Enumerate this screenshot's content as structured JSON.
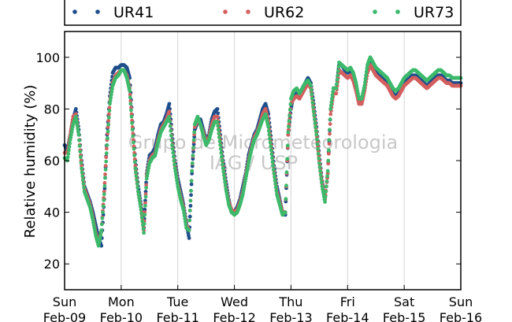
{
  "chart_data": {
    "type": "scatter",
    "ylabel": "Relative humidity (%)",
    "xlabel": "",
    "ylim": [
      10,
      110
    ],
    "xlim": [
      0,
      7
    ],
    "yticks": [
      20,
      40,
      60,
      80,
      100
    ],
    "xticks": [
      {
        "x": 0,
        "day": "Sun",
        "date": "Feb-09"
      },
      {
        "x": 1,
        "day": "Mon",
        "date": "Feb-10"
      },
      {
        "x": 2,
        "day": "Tue",
        "date": "Feb-11"
      },
      {
        "x": 3,
        "day": "Wed",
        "date": "Feb-12"
      },
      {
        "x": 4,
        "day": "Thu",
        "date": "Feb-13"
      },
      {
        "x": 5,
        "day": "Fri",
        "date": "Feb-14"
      },
      {
        "x": 6,
        "day": "Sat",
        "date": "Feb-15"
      },
      {
        "x": 7,
        "day": "Sun",
        "date": "Feb-16"
      }
    ],
    "grid": "vertical",
    "legend_position": "top",
    "watermark_line1": "Grupo de Micrometeorologia",
    "watermark_line2": "IAG / USP",
    "series": [
      {
        "name": "UR41",
        "color": "#1f4e8c"
      },
      {
        "name": "UR62",
        "color": "#d45f5f"
      },
      {
        "name": "UR73",
        "color": "#3cb96a"
      }
    ],
    "x": [
      0.0,
      0.05,
      0.1,
      0.15,
      0.2,
      0.25,
      0.3,
      0.35,
      0.4,
      0.45,
      0.5,
      0.55,
      0.6,
      0.65,
      0.7,
      0.75,
      0.8,
      0.85,
      0.9,
      0.95,
      1.0,
      1.05,
      1.1,
      1.15,
      1.2,
      1.25,
      1.3,
      1.35,
      1.4,
      1.45,
      1.5,
      1.55,
      1.6,
      1.65,
      1.7,
      1.75,
      1.8,
      1.85,
      1.9,
      1.95,
      2.0,
      2.05,
      2.1,
      2.15,
      2.2,
      2.25,
      2.3,
      2.35,
      2.4,
      2.45,
      2.5,
      2.55,
      2.6,
      2.65,
      2.7,
      2.75,
      2.8,
      2.85,
      2.9,
      2.95,
      3.0,
      3.05,
      3.1,
      3.15,
      3.2,
      3.25,
      3.3,
      3.35,
      3.4,
      3.45,
      3.5,
      3.55,
      3.6,
      3.65,
      3.7,
      3.75,
      3.8,
      3.85,
      3.9,
      3.95,
      4.0,
      4.05,
      4.1,
      4.15,
      4.2,
      4.25,
      4.3,
      4.35,
      4.4,
      4.45,
      4.5,
      4.55,
      4.6,
      4.65,
      4.7,
      4.75,
      4.8,
      4.85,
      4.9,
      4.95,
      5.0,
      5.05,
      5.1,
      5.15,
      5.2,
      5.25,
      5.3,
      5.35,
      5.4,
      5.45,
      5.5,
      5.55,
      5.6,
      5.65,
      5.7,
      5.75,
      5.8,
      5.85,
      5.9,
      5.95,
      6.0,
      6.05,
      6.1,
      6.15,
      6.2,
      6.25,
      6.3,
      6.35,
      6.4,
      6.45,
      6.5,
      6.55,
      6.6,
      6.65,
      6.7,
      6.75,
      6.8,
      6.85,
      6.9,
      6.95,
      7.0
    ],
    "values": {
      "UR41": [
        66,
        64,
        70,
        76,
        80,
        72,
        60,
        50,
        47,
        44,
        40,
        35,
        30,
        27,
        45,
        70,
        85,
        94,
        96,
        96,
        97,
        97,
        96,
        92,
        75,
        60,
        50,
        43,
        34,
        55,
        62,
        63,
        65,
        70,
        74,
        75,
        78,
        82,
        70,
        60,
        53,
        48,
        43,
        36,
        30,
        55,
        72,
        75,
        76,
        72,
        68,
        70,
        76,
        79,
        80,
        70,
        60,
        52,
        45,
        40,
        40,
        42,
        45,
        50,
        55,
        62,
        66,
        70,
        72,
        76,
        80,
        82,
        78,
        68,
        58,
        50,
        45,
        40,
        39,
        70,
        80,
        86,
        86,
        84,
        88,
        90,
        92,
        90,
        82,
        73,
        62,
        52,
        45,
        55,
        80,
        88,
        88,
        97,
        97,
        95,
        94,
        95,
        93,
        89,
        83,
        82,
        88,
        96,
        99,
        97,
        94,
        93,
        92,
        91,
        90,
        88,
        86,
        85,
        86,
        88,
        90,
        91,
        92,
        93,
        93,
        92,
        91,
        90,
        89,
        90,
        91,
        92,
        93,
        93,
        92,
        91,
        91,
        90,
        90,
        90,
        90
      ],
      "UR62": [
        63,
        63,
        70,
        77,
        78,
        70,
        58,
        49,
        46,
        43,
        38,
        32,
        28,
        33,
        48,
        68,
        83,
        90,
        93,
        94,
        95,
        95,
        93,
        88,
        73,
        58,
        48,
        42,
        33,
        54,
        60,
        62,
        63,
        68,
        72,
        74,
        76,
        79,
        68,
        58,
        51,
        46,
        42,
        35,
        33,
        56,
        73,
        76,
        74,
        71,
        67,
        69,
        74,
        77,
        77,
        68,
        58,
        50,
        44,
        41,
        40,
        41,
        44,
        48,
        54,
        60,
        65,
        69,
        71,
        74,
        78,
        80,
        75,
        66,
        56,
        48,
        44,
        40,
        40,
        70,
        82,
        84,
        85,
        84,
        86,
        88,
        90,
        88,
        80,
        71,
        60,
        51,
        45,
        55,
        78,
        86,
        86,
        95,
        94,
        93,
        92,
        93,
        91,
        87,
        82,
        82,
        87,
        94,
        97,
        95,
        93,
        92,
        91,
        90,
        89,
        87,
        85,
        84,
        85,
        87,
        89,
        90,
        91,
        92,
        92,
        91,
        90,
        89,
        88,
        89,
        90,
        91,
        92,
        92,
        91,
        90,
        90,
        89,
        89,
        89,
        89
      ],
      "UR73": [
        61,
        60,
        68,
        74,
        77,
        70,
        57,
        48,
        45,
        42,
        37,
        31,
        27,
        33,
        47,
        66,
        82,
        89,
        92,
        93,
        95,
        95,
        92,
        87,
        72,
        57,
        48,
        41,
        32,
        53,
        59,
        61,
        62,
        67,
        71,
        73,
        75,
        77,
        66,
        57,
        50,
        45,
        41,
        34,
        33,
        56,
        74,
        77,
        74,
        70,
        66,
        68,
        72,
        75,
        75,
        66,
        57,
        49,
        43,
        40,
        39,
        40,
        43,
        47,
        53,
        59,
        64,
        68,
        70,
        73,
        76,
        78,
        73,
        64,
        55,
        47,
        43,
        39,
        40,
        71,
        84,
        87,
        88,
        86,
        88,
        90,
        91,
        89,
        79,
        70,
        59,
        50,
        44,
        56,
        80,
        88,
        88,
        98,
        97,
        96,
        95,
        96,
        94,
        90,
        84,
        84,
        89,
        97,
        100,
        98,
        96,
        95,
        94,
        93,
        92,
        90,
        88,
        87,
        88,
        90,
        92,
        93,
        94,
        95,
        95,
        94,
        93,
        92,
        91,
        92,
        93,
        94,
        95,
        95,
        94,
        93,
        93,
        92,
        92,
        92,
        92
      ]
    }
  }
}
